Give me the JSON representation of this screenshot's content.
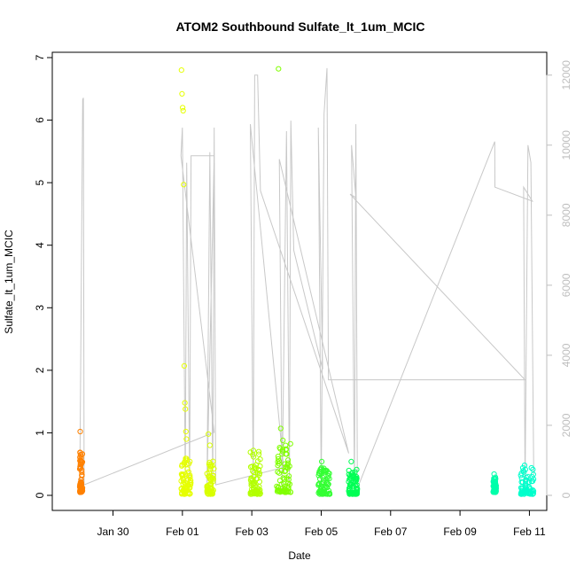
{
  "chart_data": {
    "type": "scatter",
    "title": "ATOM2 Southbound Sulfate_lt_1um_MCIC",
    "xlabel": "Date",
    "ylabel": "Sulfate_lt_1um_MCIC",
    "xlim": [
      "2017-01-28T06:00",
      "2017-02-11T12:00"
    ],
    "ylim": [
      0,
      7
    ],
    "y2lim": [
      0,
      12500
    ],
    "x_ticks": [
      {
        "date": "2017-01-30",
        "label": "Jan 30"
      },
      {
        "date": "2017-02-01",
        "label": "Feb 01"
      },
      {
        "date": "2017-02-03",
        "label": "Feb 03"
      },
      {
        "date": "2017-02-05",
        "label": "Feb 05"
      },
      {
        "date": "2017-02-07",
        "label": "Feb 07"
      },
      {
        "date": "2017-02-09",
        "label": "Feb 09"
      },
      {
        "date": "2017-02-11",
        "label": "Feb 11"
      }
    ],
    "y_ticks": [
      0,
      1,
      2,
      3,
      4,
      5,
      6,
      7
    ],
    "y2_ticks": [
      0,
      2000,
      4000,
      6000,
      8000,
      10000,
      12000
    ],
    "grid": false,
    "point_style": "open circle",
    "color_scale": "rainbow by time (orange to cyan)",
    "secondary_line_color": "#c8c8c8",
    "clusters": [
      {
        "start": "2017-01-29T01:00",
        "end": "2017-01-29T03:00",
        "color": "#ff8000",
        "y_low": 0.05,
        "y_high": 0.7,
        "outliers": [
          1.02,
          0.65,
          0.6
        ]
      },
      {
        "start": "2017-01-31T23:00",
        "end": "2017-02-01T06:00",
        "color": "#e6ff00",
        "y_low": 0.02,
        "y_high": 0.6,
        "outliers": [
          6.8,
          6.42,
          6.2,
          6.15,
          4.97,
          2.07,
          1.48,
          1.38,
          1.02,
          0.9
        ]
      },
      {
        "start": "2017-02-01T17:00",
        "end": "2017-02-01T22:00",
        "color": "#d9ff00",
        "y_low": 0.02,
        "y_high": 0.55,
        "outliers": [
          0.98,
          0.8
        ]
      },
      {
        "start": "2017-02-02T23:00",
        "end": "2017-02-03T06:00",
        "color": "#b3ff00",
        "y_low": 0.02,
        "y_high": 0.72,
        "outliers": []
      },
      {
        "start": "2017-02-03T17:00",
        "end": "2017-02-04T03:00",
        "color": "#80ff00",
        "y_low": 0.05,
        "y_high": 0.85,
        "outliers": [
          6.82,
          1.07,
          0.88
        ]
      },
      {
        "start": "2017-02-04T22:00",
        "end": "2017-02-05T06:00",
        "color": "#33ff33",
        "y_low": 0.02,
        "y_high": 0.45,
        "outliers": [
          0.54
        ]
      },
      {
        "start": "2017-02-05T19:00",
        "end": "2017-02-06T01:00",
        "color": "#00ff55",
        "y_low": 0.02,
        "y_high": 0.45,
        "outliers": [
          0.54
        ]
      },
      {
        "start": "2017-02-09T23:00",
        "end": "2017-02-10T01:00",
        "color": "#00ffaa",
        "y_low": 0.05,
        "y_high": 0.3,
        "outliers": [
          0.34
        ]
      },
      {
        "start": "2017-02-10T18:00",
        "end": "2017-02-11T03:00",
        "color": "#00ffcc",
        "y_low": 0.02,
        "y_high": 0.45,
        "outliers": [
          0.48
        ]
      }
    ],
    "secondary_series": {
      "name": "",
      "points": [
        [
          "2017-01-29T01:00",
          200
        ],
        [
          "2017-01-29T03:00",
          11300
        ],
        [
          "2017-01-29T03:30",
          11350
        ],
        [
          "2017-01-29T04:00",
          300
        ],
        [
          "2017-02-01T22:00",
          1800
        ],
        [
          "2017-01-31T23:00",
          9700
        ],
        [
          "2017-02-01T00:00",
          10500
        ],
        [
          "2017-02-01T02:00",
          300
        ],
        [
          "2017-02-01T03:00",
          9500
        ],
        [
          "2017-02-01T05:00",
          300
        ],
        [
          "2017-02-01T06:00",
          9700
        ],
        [
          "2017-02-01T22:00",
          9700
        ],
        [
          "2017-02-01T17:00",
          300
        ],
        [
          "2017-02-01T19:00",
          9800
        ],
        [
          "2017-02-01T21:00",
          200
        ],
        [
          "2017-02-01T22:00",
          10500
        ],
        [
          "2017-02-01T23:00",
          300
        ],
        [
          "2017-02-03T22:00",
          800
        ],
        [
          "2017-02-02T23:00",
          10600
        ],
        [
          "2017-02-03T01:00",
          300
        ],
        [
          "2017-02-03T02:00",
          12000
        ],
        [
          "2017-02-03T04:00",
          12000
        ],
        [
          "2017-02-03T06:00",
          8700
        ],
        [
          "2017-02-05T19:00",
          1200
        ],
        [
          "2017-02-03T19:00",
          9600
        ],
        [
          "2017-02-03T21:00",
          200
        ],
        [
          "2017-02-04T00:00",
          10400
        ],
        [
          "2017-02-04T02:00",
          300
        ],
        [
          "2017-02-04T03:00",
          10700
        ],
        [
          "2017-02-04T05:00",
          7000
        ],
        [
          "2017-02-05T01:00",
          3600
        ],
        [
          "2017-02-04T22:00",
          10500
        ],
        [
          "2017-02-05T00:00",
          300
        ],
        [
          "2017-02-05T02:00",
          10900
        ],
        [
          "2017-02-05T04:00",
          12200
        ],
        [
          "2017-02-05T05:00",
          3300
        ],
        [
          "2017-02-10T21:00",
          3300
        ],
        [
          "2017-02-05T20:00",
          8600
        ],
        [
          "2017-02-06T00:00",
          8500
        ],
        [
          "2017-02-05T21:00",
          10000
        ],
        [
          "2017-02-05T23:00",
          300
        ],
        [
          "2017-02-06T00:00",
          10600
        ],
        [
          "2017-02-06T01:00",
          200
        ],
        [
          "2017-02-10T00:00",
          10100
        ],
        [
          "2017-02-10T00:10",
          8800
        ],
        [
          "2017-02-11T02:00",
          8400
        ],
        [
          "2017-02-10T20:00",
          8800
        ],
        [
          "2017-02-10T21:00",
          200
        ],
        [
          "2017-02-10T23:00",
          10000
        ],
        [
          "2017-02-11T01:00",
          9500
        ],
        [
          "2017-02-11T03:00",
          600
        ]
      ]
    }
  }
}
